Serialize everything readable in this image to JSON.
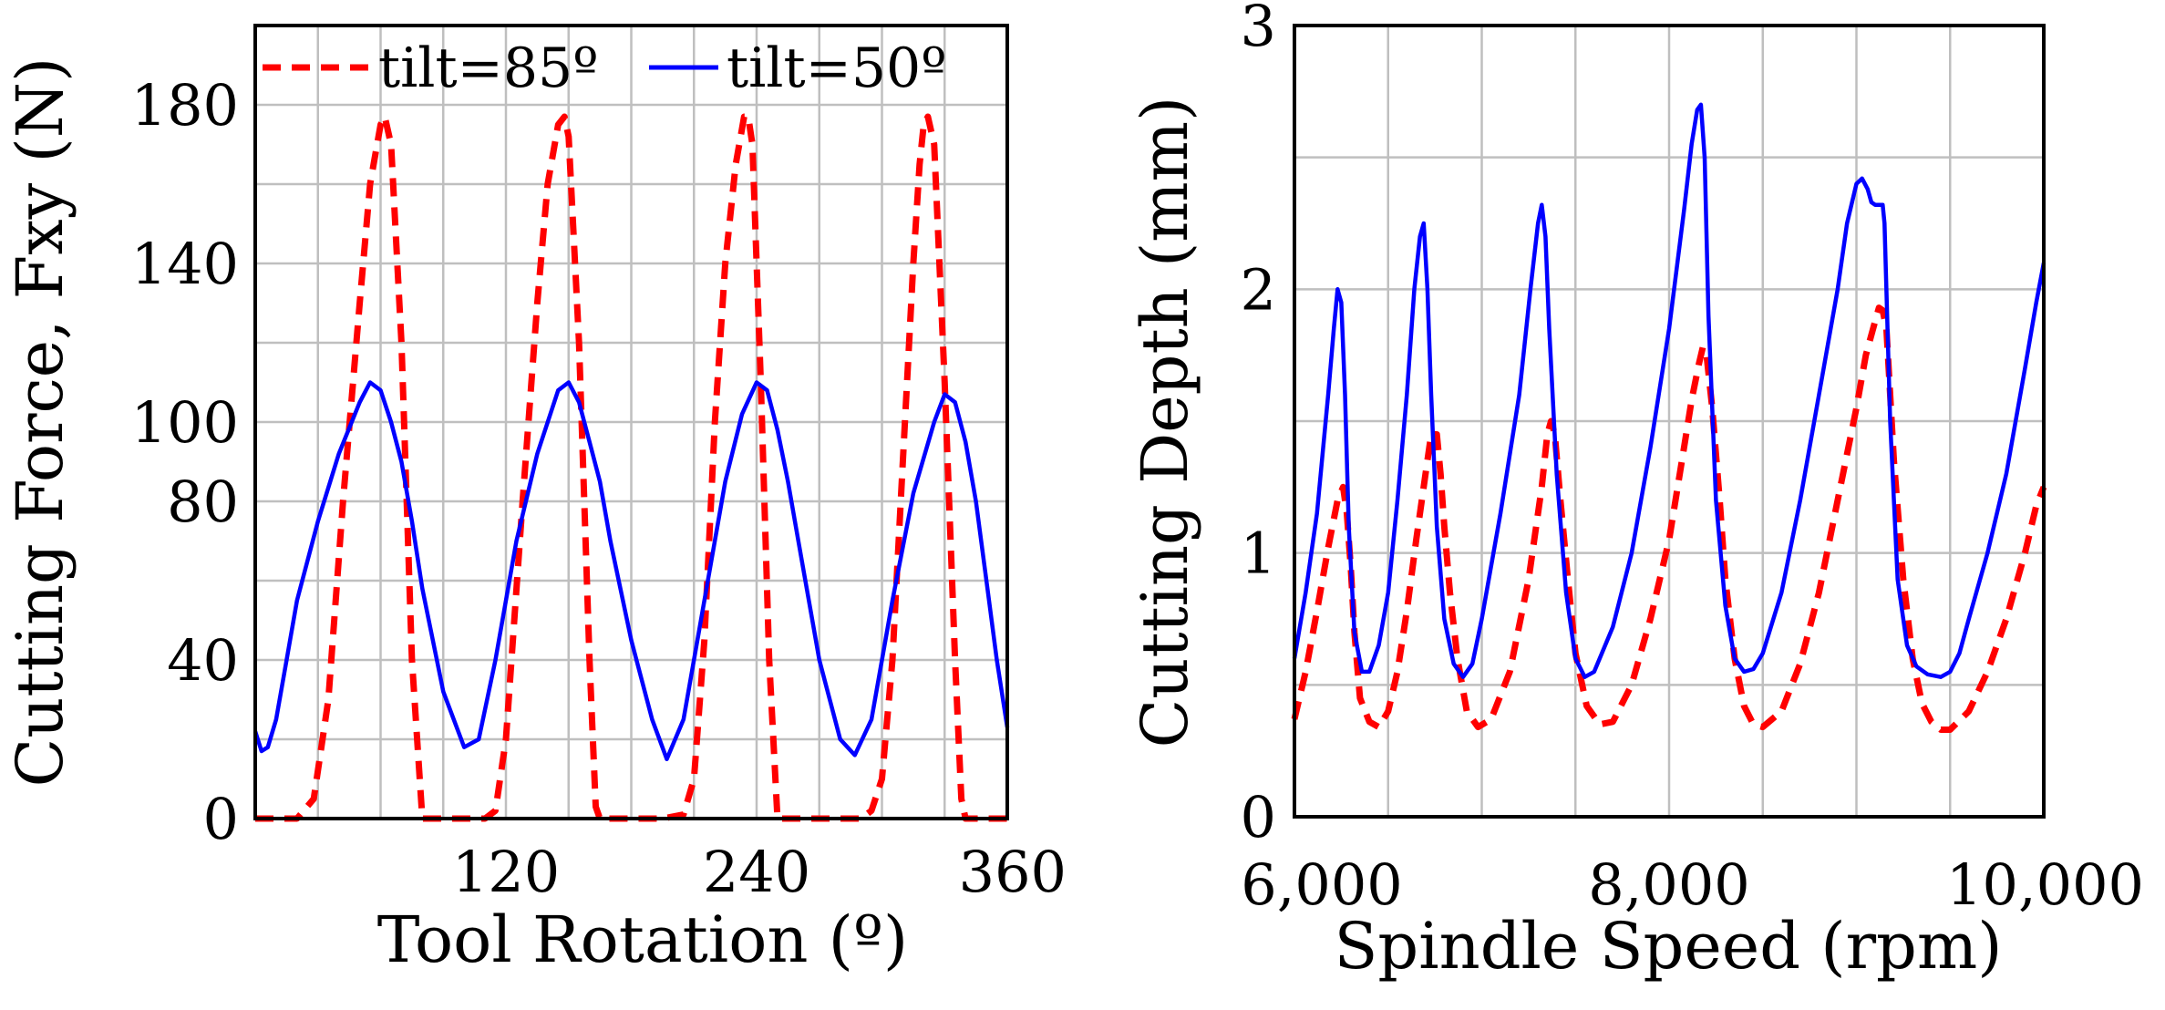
{
  "chart_data": [
    {
      "type": "line",
      "xlabel": "Tool Rotation (º)",
      "ylabel": "Cutting Force, Fxy (N)",
      "xlim": [
        0,
        360
      ],
      "ylim": [
        0,
        200
      ],
      "xticks": [
        120,
        240,
        360
      ],
      "yticks": [
        0,
        40,
        80,
        100,
        140,
        180
      ],
      "xgrid": [
        0,
        30,
        60,
        90,
        120,
        150,
        180,
        210,
        240,
        270,
        300,
        330,
        360
      ],
      "ygrid": [
        0,
        20,
        40,
        60,
        80,
        100,
        120,
        140,
        160,
        180,
        200
      ],
      "grid": true,
      "legend_position": "top",
      "series": [
        {
          "name": "tilt=85º",
          "color": "#ff0000",
          "style": "dashed",
          "x": [
            0,
            10,
            20,
            28,
            35,
            42,
            50,
            55,
            60,
            62,
            65,
            70,
            75,
            80,
            90,
            100,
            110,
            115,
            120,
            128,
            135,
            140,
            145,
            148,
            150,
            155,
            160,
            163,
            165,
            170,
            180,
            195,
            205,
            210,
            215,
            220,
            225,
            230,
            234,
            236,
            238,
            242,
            246,
            250,
            260,
            275,
            290,
            295,
            300,
            305,
            310,
            315,
            318,
            320,
            322,
            325,
            330,
            335,
            338,
            340,
            360
          ],
          "y": [
            0,
            0,
            0,
            5,
            30,
            80,
            130,
            160,
            175,
            177,
            170,
            120,
            40,
            0,
            0,
            0,
            0,
            2,
            20,
            80,
            130,
            160,
            175,
            177,
            172,
            120,
            40,
            3,
            0,
            0,
            0,
            0,
            1,
            10,
            45,
            100,
            140,
            165,
            177,
            177,
            170,
            110,
            40,
            0,
            0,
            0,
            0,
            2,
            10,
            40,
            90,
            140,
            165,
            175,
            177,
            170,
            110,
            40,
            5,
            0,
            0
          ]
        },
        {
          "name": "tilt=50º",
          "color": "#0000ff",
          "style": "solid",
          "x": [
            0,
            3,
            6,
            10,
            15,
            20,
            30,
            40,
            50,
            55,
            60,
            65,
            70,
            75,
            80,
            90,
            100,
            107,
            115,
            125,
            135,
            145,
            150,
            155,
            160,
            165,
            170,
            180,
            190,
            197,
            205,
            215,
            225,
            233,
            240,
            245,
            250,
            255,
            260,
            270,
            280,
            287,
            295,
            305,
            315,
            325,
            330,
            335,
            340,
            345,
            350,
            355,
            360
          ],
          "y": [
            22,
            17,
            18,
            25,
            40,
            55,
            75,
            92,
            105,
            110,
            108,
            100,
            90,
            75,
            58,
            32,
            18,
            20,
            40,
            70,
            92,
            108,
            110,
            105,
            95,
            85,
            70,
            45,
            25,
            15,
            25,
            55,
            85,
            102,
            110,
            108,
            98,
            85,
            70,
            40,
            20,
            16,
            25,
            55,
            82,
            100,
            107,
            105,
            95,
            80,
            60,
            40,
            23
          ]
        }
      ]
    },
    {
      "type": "line",
      "xlabel": "Spindle Speed (rpm)",
      "ylabel": "Cutting Depth (mm)",
      "xlim": [
        6000,
        10000
      ],
      "ylim": [
        0,
        3
      ],
      "xticks": [
        6000,
        8000,
        10000
      ],
      "xtick_labels": [
        "6,000",
        "8,000",
        "10,000"
      ],
      "yticks": [
        0,
        1,
        2,
        3
      ],
      "xgrid": [
        6000,
        6500,
        7000,
        7500,
        8000,
        8500,
        9000,
        9500,
        10000
      ],
      "ygrid": [
        0,
        0.5,
        1,
        1.5,
        2,
        2.5,
        3
      ],
      "grid": true,
      "series": [
        {
          "name": "tilt=85º",
          "color": "#ff0000",
          "style": "dashed",
          "x": [
            6000,
            6060,
            6120,
            6180,
            6230,
            6260,
            6280,
            6300,
            6320,
            6350,
            6400,
            6450,
            6500,
            6550,
            6600,
            6650,
            6700,
            6730,
            6760,
            6780,
            6800,
            6830,
            6870,
            6920,
            6980,
            7050,
            7150,
            7250,
            7320,
            7350,
            7370,
            7390,
            7420,
            7460,
            7500,
            7560,
            7630,
            7700,
            7800,
            7900,
            8000,
            8080,
            8120,
            8160,
            8180,
            8200,
            8230,
            8270,
            8300,
            8350,
            8400,
            8450,
            8500,
            8600,
            8700,
            8800,
            8900,
            9000,
            9050,
            9100,
            9120,
            9140,
            9160,
            9200,
            9250,
            9300,
            9350,
            9400,
            9450,
            9500,
            9600,
            9700,
            9800,
            9900,
            9960,
            10000
          ],
          "y": [
            0.37,
            0.55,
            0.78,
            1.02,
            1.2,
            1.25,
            1.15,
            0.95,
            0.7,
            0.45,
            0.36,
            0.34,
            0.4,
            0.55,
            0.78,
            1.05,
            1.3,
            1.45,
            1.45,
            1.3,
            1.1,
            0.85,
            0.6,
            0.4,
            0.34,
            0.37,
            0.55,
            0.9,
            1.25,
            1.45,
            1.5,
            1.45,
            1.2,
            0.9,
            0.62,
            0.42,
            0.35,
            0.36,
            0.5,
            0.75,
            1.05,
            1.4,
            1.58,
            1.72,
            1.78,
            1.75,
            1.55,
            1.2,
            0.9,
            0.6,
            0.42,
            0.35,
            0.34,
            0.4,
            0.58,
            0.85,
            1.2,
            1.55,
            1.75,
            1.88,
            1.93,
            1.92,
            1.85,
            1.35,
            0.9,
            0.6,
            0.43,
            0.36,
            0.33,
            0.33,
            0.4,
            0.55,
            0.75,
            1.0,
            1.18,
            1.25
          ]
        },
        {
          "name": "tilt=50º",
          "color": "#0000ff",
          "style": "solid",
          "x": [
            6000,
            6060,
            6120,
            6180,
            6210,
            6230,
            6250,
            6270,
            6290,
            6320,
            6360,
            6400,
            6450,
            6500,
            6550,
            6600,
            6640,
            6670,
            6690,
            6710,
            6730,
            6760,
            6800,
            6850,
            6900,
            6950,
            7000,
            7100,
            7200,
            7260,
            7300,
            7320,
            7340,
            7360,
            7400,
            7450,
            7500,
            7550,
            7600,
            7700,
            7800,
            7900,
            8000,
            8080,
            8120,
            8150,
            8170,
            8190,
            8210,
            8250,
            8300,
            8350,
            8400,
            8450,
            8500,
            8600,
            8700,
            8800,
            8900,
            8950,
            9000,
            9030,
            9060,
            9080,
            9100,
            9120,
            9140,
            9150,
            9180,
            9220,
            9270,
            9320,
            9380,
            9450,
            9500,
            9550,
            9600,
            9700,
            9800,
            9900,
            9960,
            10000
          ],
          "y": [
            0.6,
            0.85,
            1.15,
            1.6,
            1.85,
            2.0,
            1.95,
            1.6,
            1.1,
            0.7,
            0.55,
            0.55,
            0.65,
            0.85,
            1.2,
            1.6,
            2.0,
            2.2,
            2.25,
            2.0,
            1.6,
            1.1,
            0.75,
            0.58,
            0.53,
            0.58,
            0.75,
            1.15,
            1.6,
            2.0,
            2.25,
            2.32,
            2.2,
            1.85,
            1.3,
            0.85,
            0.6,
            0.53,
            0.55,
            0.72,
            1.0,
            1.4,
            1.85,
            2.3,
            2.55,
            2.68,
            2.7,
            2.5,
            1.9,
            1.2,
            0.8,
            0.6,
            0.55,
            0.56,
            0.62,
            0.85,
            1.2,
            1.6,
            2.0,
            2.25,
            2.4,
            2.42,
            2.38,
            2.33,
            2.32,
            2.32,
            2.32,
            2.25,
            1.5,
            0.9,
            0.65,
            0.57,
            0.54,
            0.53,
            0.55,
            0.62,
            0.75,
            1.0,
            1.3,
            1.7,
            1.95,
            2.1
          ]
        }
      ]
    }
  ]
}
